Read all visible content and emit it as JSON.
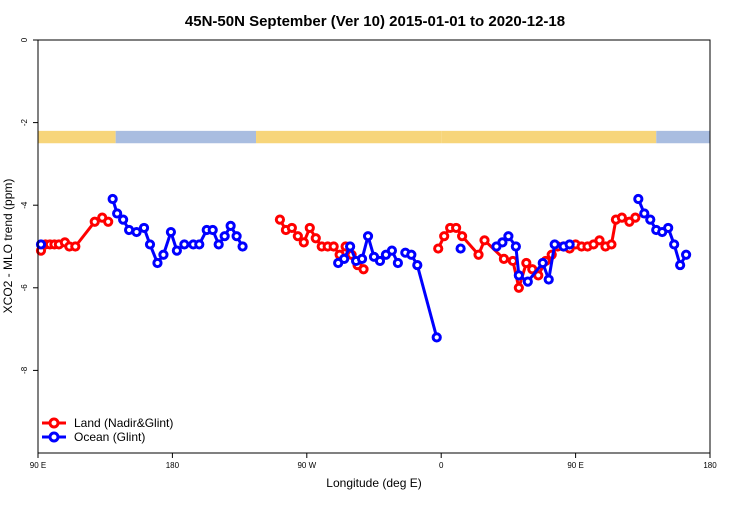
{
  "chart_data": {
    "type": "line",
    "title": "45N-50N September (Ver 10)   2015-01-01 to 2020-12-18",
    "xlabel": "Longitude (deg E)",
    "ylabel": "XCO2 - MLO trend (ppm)",
    "xlim": [
      90,
      540
    ],
    "ylim": [
      -10,
      0
    ],
    "x_ticks": [
      {
        "value": 90,
        "label": "90 E"
      },
      {
        "value": 180,
        "label": "180"
      },
      {
        "value": 270,
        "label": "90 W"
      },
      {
        "value": 360,
        "label": "0"
      },
      {
        "value": 450,
        "label": "90 E"
      },
      {
        "value": 540,
        "label": "180"
      }
    ],
    "y_ticks": [
      {
        "value": 0,
        "label": "0"
      },
      {
        "value": -2,
        "label": "-2"
      },
      {
        "value": -4,
        "label": "-4"
      },
      {
        "value": -6,
        "label": "-6"
      },
      {
        "value": -8,
        "label": "-8"
      }
    ],
    "legend": {
      "position": "bottom-left"
    },
    "surface_strip": {
      "y_range": [
        -2.5,
        -2.2
      ],
      "land_color": "#F7D57A",
      "ocean_color": "#A9BDE0",
      "segments": [
        {
          "type": "land",
          "from": 90,
          "to": 142
        },
        {
          "type": "ocean",
          "from": 142,
          "to": 236
        },
        {
          "type": "land",
          "from": 236,
          "to": 360
        },
        {
          "type": "land",
          "from": 360,
          "to": 504
        },
        {
          "type": "ocean",
          "from": 504,
          "to": 540
        }
      ]
    },
    "series": [
      {
        "name": "Land (Nadir&Glint)",
        "color": "#FF0000",
        "points": [
          [
            92,
            -5.1
          ],
          [
            95,
            -4.95
          ],
          [
            98,
            -4.95
          ],
          [
            101,
            -4.95
          ],
          [
            104,
            -4.95
          ],
          [
            108,
            -4.9
          ],
          [
            111,
            -5.0
          ],
          [
            115,
            -5.0
          ],
          [
            128,
            -4.4
          ],
          [
            133,
            -4.3
          ],
          [
            137,
            -4.4
          ],
          [
            252,
            -4.35
          ],
          [
            256,
            -4.6
          ],
          [
            260,
            -4.55
          ],
          [
            264,
            -4.75
          ],
          [
            268,
            -4.9
          ],
          [
            272,
            -4.55
          ],
          [
            276,
            -4.8
          ],
          [
            280,
            -5.0
          ],
          [
            284,
            -5.0
          ],
          [
            288,
            -5.0
          ],
          [
            292,
            -5.2
          ],
          [
            296,
            -5.0
          ],
          [
            300,
            -5.2
          ],
          [
            304,
            -5.45
          ],
          [
            308,
            -5.55
          ],
          [
            358,
            -5.05
          ],
          [
            362,
            -4.75
          ],
          [
            366,
            -4.55
          ],
          [
            370,
            -4.55
          ],
          [
            374,
            -4.75
          ],
          [
            385,
            -5.2
          ],
          [
            389,
            -4.85
          ],
          [
            402,
            -5.3
          ],
          [
            408,
            -5.35
          ],
          [
            412,
            -6.0
          ],
          [
            417,
            -5.4
          ],
          [
            421,
            -5.55
          ],
          [
            425,
            -5.7
          ],
          [
            430,
            -5.35
          ],
          [
            434,
            -5.2
          ],
          [
            438,
            -5.0
          ],
          [
            442,
            -5.0
          ],
          [
            446,
            -5.05
          ],
          [
            450,
            -4.95
          ],
          [
            454,
            -5.0
          ],
          [
            458,
            -5.0
          ],
          [
            462,
            -4.95
          ],
          [
            466,
            -4.85
          ],
          [
            470,
            -5.0
          ],
          [
            474,
            -4.95
          ],
          [
            477,
            -4.35
          ],
          [
            481,
            -4.3
          ],
          [
            486,
            -4.4
          ],
          [
            490,
            -4.3
          ]
        ]
      },
      {
        "name": "Ocean (Glint)",
        "color": "#0000FF",
        "points": [
          [
            92,
            -4.95
          ],
          [
            140,
            -3.85
          ],
          [
            143,
            -4.2
          ],
          [
            147,
            -4.35
          ],
          [
            151,
            -4.6
          ],
          [
            156,
            -4.65
          ],
          [
            161,
            -4.55
          ],
          [
            165,
            -4.95
          ],
          [
            170,
            -5.4
          ],
          [
            174,
            -5.2
          ],
          [
            179,
            -4.65
          ],
          [
            183,
            -5.1
          ],
          [
            188,
            -4.95
          ],
          [
            194,
            -4.95
          ],
          [
            198,
            -4.95
          ],
          [
            203,
            -4.6
          ],
          [
            207,
            -4.6
          ],
          [
            211,
            -4.95
          ],
          [
            215,
            -4.75
          ],
          [
            219,
            -4.5
          ],
          [
            223,
            -4.75
          ],
          [
            227,
            -5.0
          ],
          [
            336,
            -5.15
          ],
          [
            340,
            -5.2
          ],
          [
            344,
            -5.45
          ],
          [
            357,
            -7.2
          ],
          [
            291,
            -5.4
          ],
          [
            295,
            -5.3
          ],
          [
            299,
            -5.0
          ],
          [
            303,
            -5.35
          ],
          [
            307,
            -5.3
          ],
          [
            311,
            -4.75
          ],
          [
            315,
            -5.25
          ],
          [
            319,
            -5.35
          ],
          [
            323,
            -5.2
          ],
          [
            327,
            -5.1
          ],
          [
            331,
            -5.4
          ],
          [
            373,
            -5.05
          ],
          [
            397,
            -5.0
          ],
          [
            401,
            -4.9
          ],
          [
            405,
            -4.75
          ],
          [
            410,
            -5.0
          ],
          [
            412,
            -5.7
          ],
          [
            418,
            -5.85
          ],
          [
            428,
            -5.4
          ],
          [
            432,
            -5.8
          ],
          [
            436,
            -4.95
          ],
          [
            442,
            -5.0
          ],
          [
            446,
            -4.95
          ],
          [
            492,
            -3.85
          ],
          [
            496,
            -4.2
          ],
          [
            500,
            -4.35
          ],
          [
            504,
            -4.6
          ],
          [
            508,
            -4.65
          ],
          [
            512,
            -4.55
          ],
          [
            516,
            -4.95
          ],
          [
            520,
            -5.45
          ],
          [
            524,
            -5.2
          ]
        ]
      }
    ]
  }
}
